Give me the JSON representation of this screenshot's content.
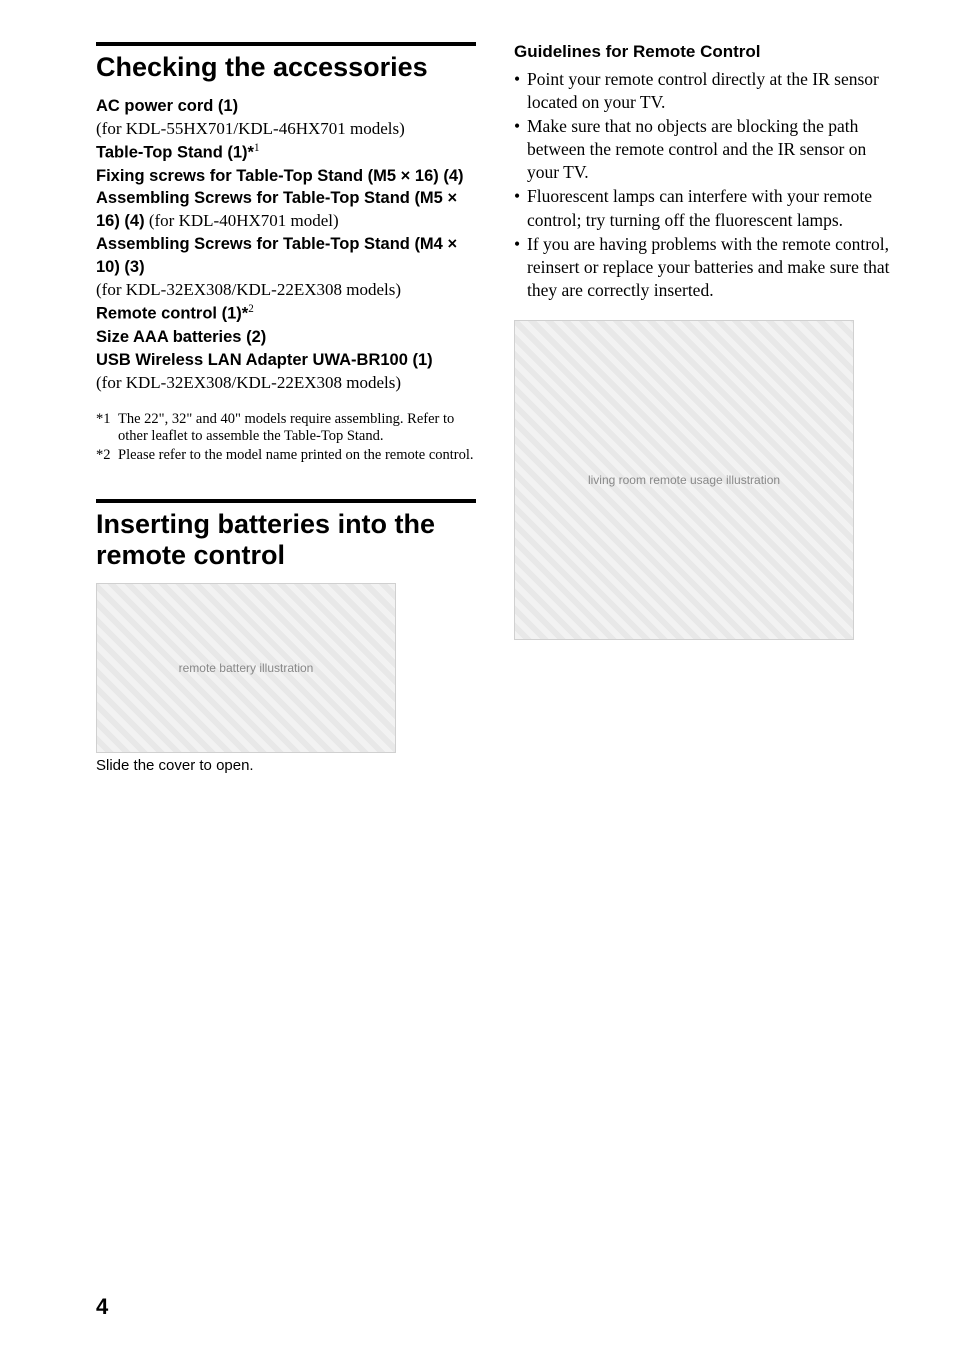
{
  "page": {
    "number": "4",
    "background_color": "#ffffff",
    "text_color": "#000000"
  },
  "left": {
    "section1": {
      "heading": "Checking the accessories",
      "items": [
        {
          "bold": "AC power cord (1)",
          "note": ""
        },
        {
          "bold": "",
          "note": "(for KDL-55HX701/KDL-46HX701 models)"
        },
        {
          "bold": "Table-Top Stand (1)*",
          "sup": "1",
          "note": ""
        },
        {
          "bold": "Fixing screws for Table-Top Stand (M5 × 16) (4)",
          "note": ""
        },
        {
          "bold": "Assembling Screws for Table-Top Stand (M5 × 16) (4)",
          "note": " (for KDL-40HX701 model)"
        },
        {
          "bold": "Assembling Screws for Table-Top Stand (M4 × 10) (3)",
          "note": ""
        },
        {
          "bold": "",
          "note": "(for KDL-32EX308/KDL-22EX308 models)"
        },
        {
          "bold": "Remote control (1)*",
          "sup": "2",
          "note": ""
        },
        {
          "bold": "Size AAA batteries (2)",
          "note": ""
        },
        {
          "bold": "USB Wireless LAN Adapter UWA-BR100 (1)",
          "note": ""
        },
        {
          "bold": "",
          "note": "(for KDL-32EX308/KDL-22EX308 models)"
        }
      ],
      "footnotes": [
        {
          "mark": "*1",
          "text": "The 22\", 32\" and 40\" models require assembling. Refer to other leaflet to assemble the Table-Top Stand."
        },
        {
          "mark": "*2",
          "text": "Please refer to the model name printed on the remote control."
        }
      ]
    },
    "section2": {
      "heading": "Inserting batteries into the remote control",
      "caption": "Slide the cover to open.",
      "illustration_label": "remote battery illustration"
    }
  },
  "right": {
    "subheading": "Guidelines for Remote Control",
    "bullets": [
      "Point your remote control directly at the IR sensor located on your TV.",
      "Make sure that no objects are blocking the path between the remote control and the IR sensor on your TV.",
      "Fluorescent lamps can interfere with your remote control; try turning off the fluorescent lamps.",
      "If you are having problems with the remote control, reinsert or replace your batteries and make sure that they are correctly inserted."
    ],
    "illustration_label": "living room remote usage illustration"
  }
}
